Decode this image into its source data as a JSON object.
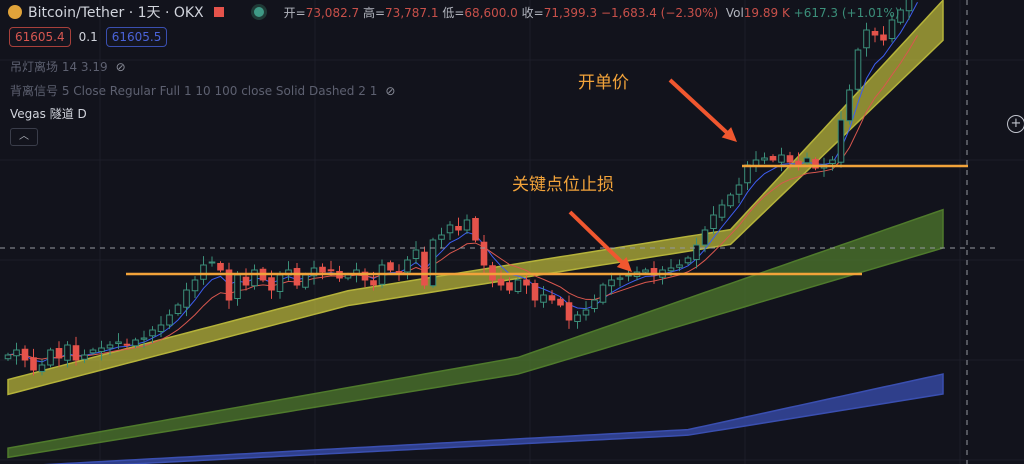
{
  "header": {
    "symbol": "Bitcoin/Tether · 1天 · OKX",
    "open_label": "开=",
    "open": "73,082.7",
    "high_label": "高=",
    "high": "73,787.1",
    "low_label": "低=",
    "low": "68,600.0",
    "close_label": "收=",
    "close": "71,399.3",
    "change": "−1,683.4 (−2.30%)",
    "vol_label": "Vol",
    "vol": "19.89 K",
    "vol_change": "+617.3 (+1.01%)"
  },
  "quote": {
    "bid": "61605.4",
    "spread": "0.1",
    "ask": "61605.5"
  },
  "indicators": [
    {
      "label": "吊灯离场 14 3.19",
      "hidden": true
    },
    {
      "label": "背离信号 5 Close Regular Full 1 10 100 close Solid Dashed 2 1",
      "hidden": true
    },
    {
      "label": "Vegas 隧道 D",
      "hidden": false
    }
  ],
  "annotations": {
    "entry": "开单价",
    "stop": "关键点位止损"
  },
  "colors": {
    "up": "#3b8f7a",
    "down": "#e5534b",
    "annotation": "#f2a33a",
    "ema_fast": "#3d5df0",
    "ema_slow": "#d9574e",
    "tunnel_yellow": "#b5b33a",
    "tunnel_green": "#4f7a2c",
    "tunnel_blue": "#3a4fb0"
  },
  "chart_data": {
    "type": "candlestick",
    "closes": [
      55830,
      56100,
      55560,
      55020,
      55290,
      56100,
      55668,
      56370,
      55560,
      55830,
      56100,
      56208,
      56370,
      56532,
      56370,
      56640,
      56748,
      57180,
      57450,
      57990,
      58530,
      59340,
      59880,
      60690,
      60852,
      60420,
      58800,
      60150,
      59610,
      60420,
      59880,
      59340,
      60150,
      60420,
      59610,
      60150,
      60528,
      60312,
      60420,
      59988,
      60150,
      60420,
      59880,
      59610,
      60690,
      60420,
      60312,
      60960,
      61500,
      59610,
      62040,
      62310,
      62850,
      62580,
      63120,
      62040,
      60690,
      59880,
      59610,
      59340,
      59880,
      59610,
      58800,
      59070,
      58800,
      58530,
      57720,
      57990,
      58260,
      58800,
      59610,
      59880,
      59988,
      60150,
      60312,
      60420,
      60150,
      60420,
      60528,
      60690,
      61068,
      61770,
      62580,
      63390,
      63930,
      64470,
      65010,
      66090,
      66360,
      66468,
      66360,
      66630,
      66252,
      66090,
      66468,
      65928,
      66090,
      66360,
      68520,
      70140,
      72300,
      73380,
      73110,
      72840,
      73920,
      74460,
      75540,
      76620
    ],
    "levels": {
      "stop": 60204,
      "entry": 66036
    },
    "crosshair_price": 61605.4,
    "tunnels": {
      "yellow": [
        [
          0,
          53700,
          54500
        ],
        [
          40,
          58500,
          59300
        ],
        [
          85,
          61800,
          62600
        ],
        [
          107,
          71500,
          73500
        ]
      ],
      "green": [
        [
          0,
          50300,
          50800
        ],
        [
          60,
          54800,
          55700
        ],
        [
          107,
          61200,
          63200
        ]
      ],
      "blue": [
        [
          0,
          49600,
          49800
        ],
        [
          80,
          51500,
          51800
        ],
        [
          107,
          53500,
          54500
        ]
      ]
    }
  }
}
